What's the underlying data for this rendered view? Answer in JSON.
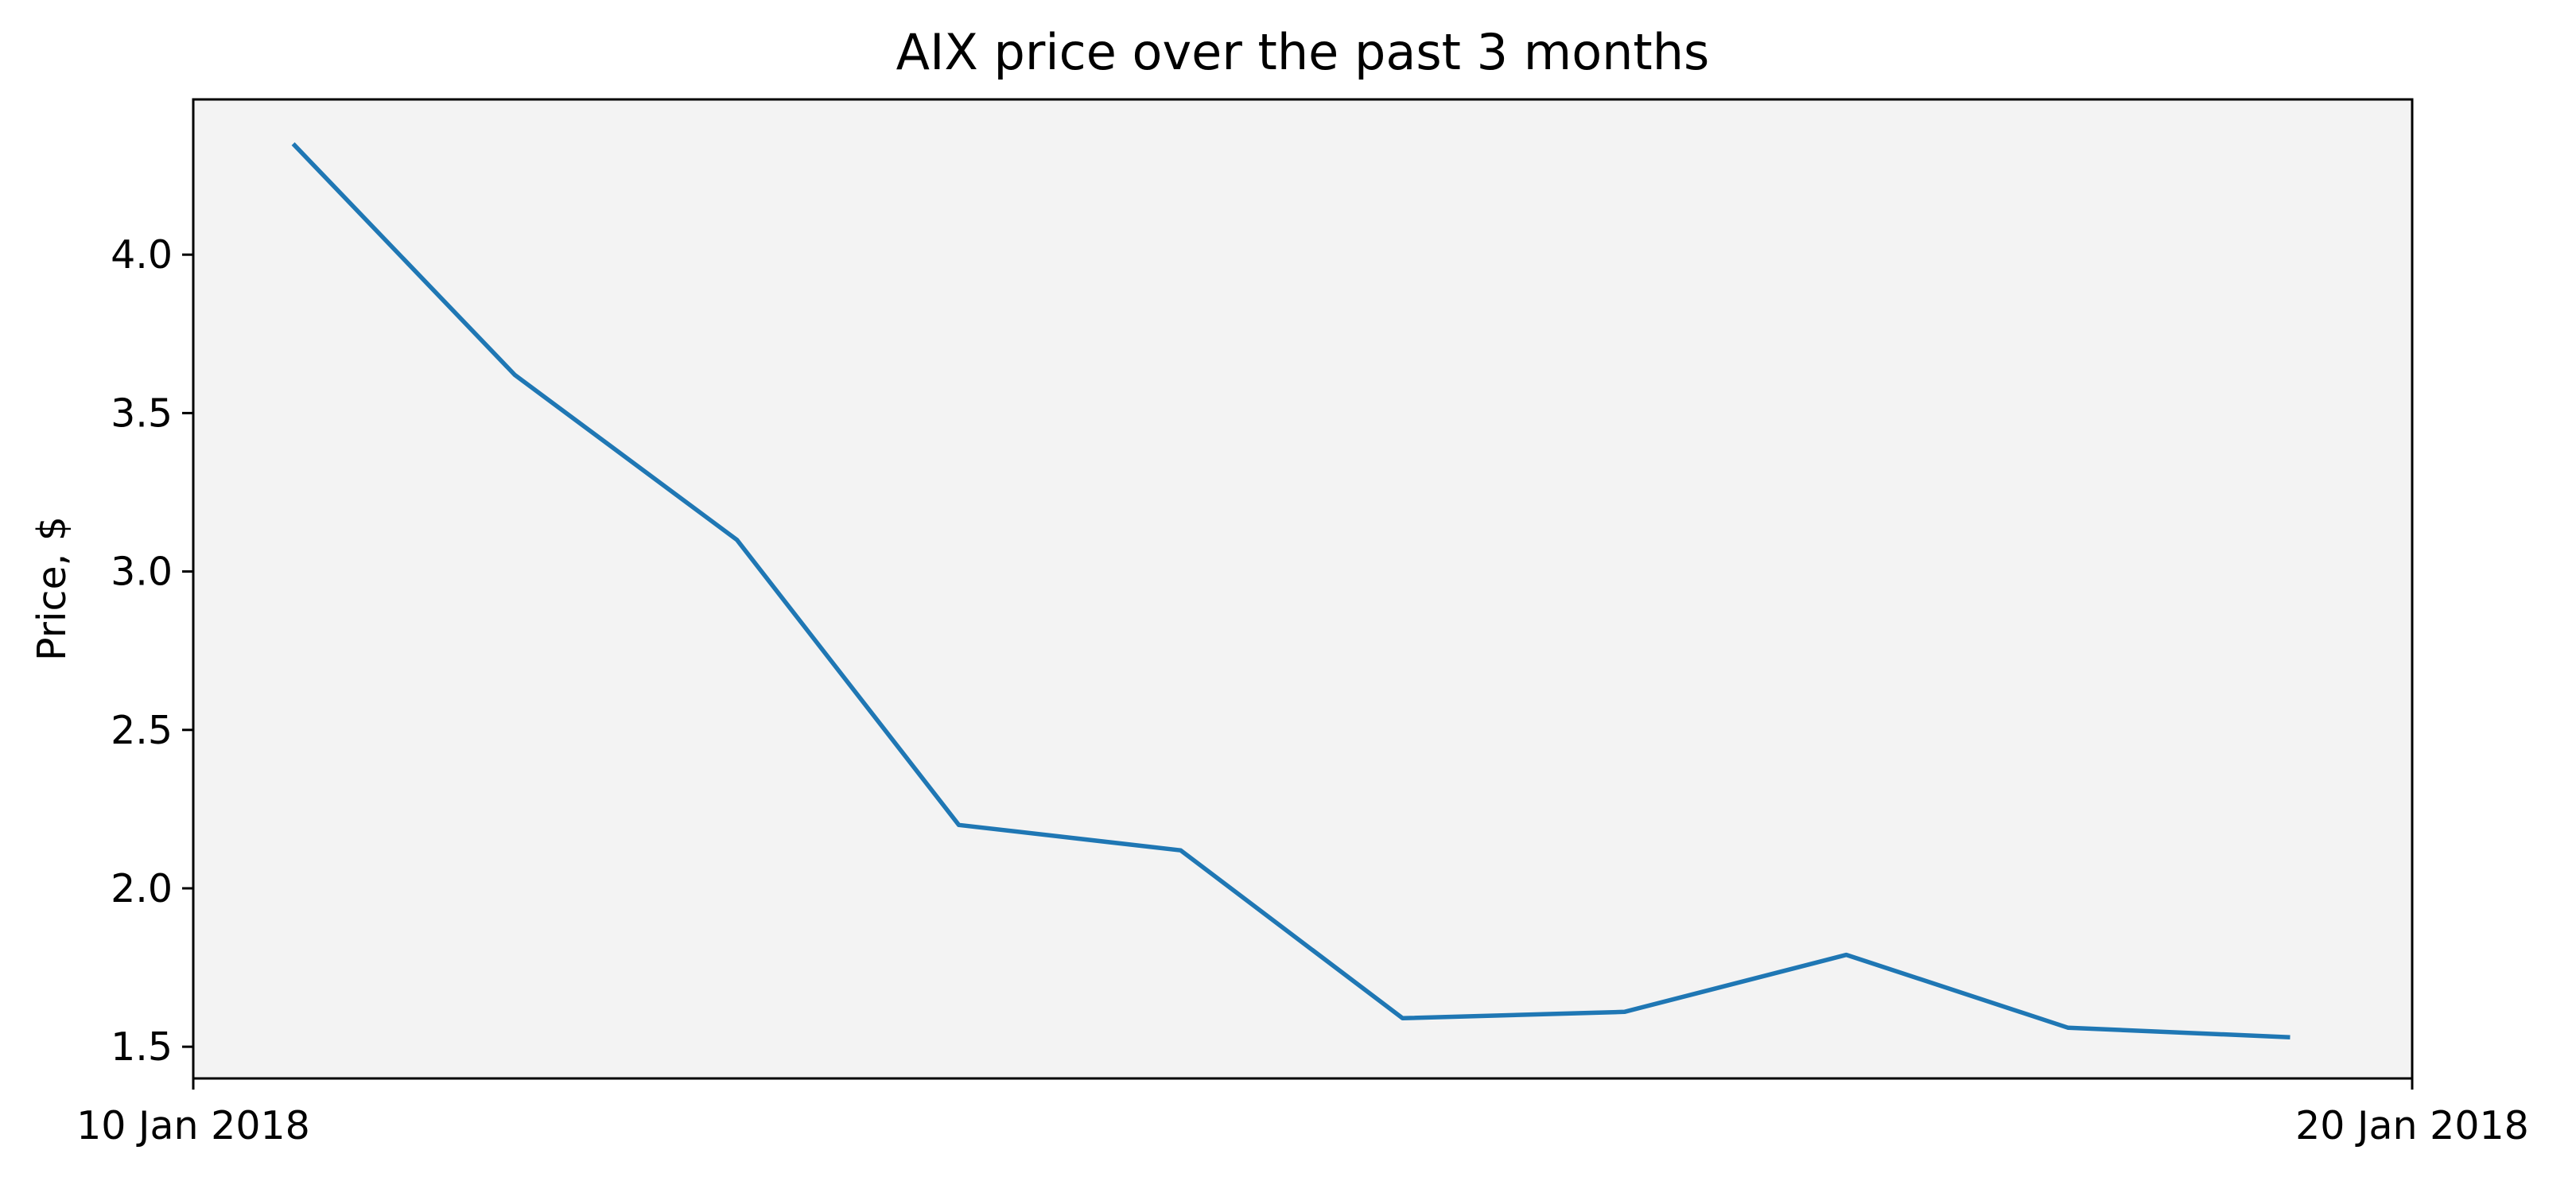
{
  "chart_data": {
    "type": "line",
    "title": "AIX price over the past 3 months",
    "xlabel": "",
    "ylabel": "Price, $",
    "x_tick_labels": [
      "10 Jan 2018",
      "20 Jan 2018"
    ],
    "x": [
      "2018-01-10",
      "2018-01-11",
      "2018-01-12",
      "2018-01-13",
      "2018-01-14",
      "2018-01-15",
      "2018-01-16",
      "2018-01-17",
      "2018-01-18",
      "2018-01-19"
    ],
    "series": [
      {
        "values": [
          4.35,
          3.62,
          3.1,
          2.2,
          2.12,
          1.59,
          1.61,
          1.79,
          1.56,
          1.53
        ]
      }
    ],
    "ylim": [
      1.4,
      4.49
    ],
    "y_ticks": [
      1.5,
      2.0,
      2.5,
      3.0,
      3.5,
      4.0
    ],
    "grid": false,
    "colors": {
      "line": "#1f77b4",
      "plot_background": "#f3f3f3",
      "axes": "#000000"
    }
  }
}
